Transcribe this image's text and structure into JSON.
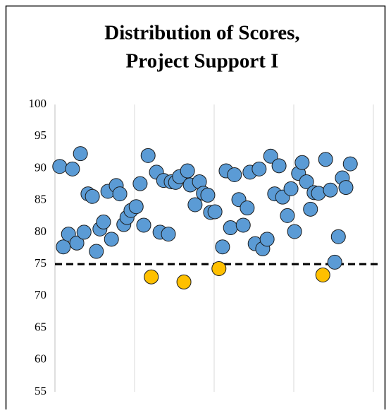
{
  "chart_data": {
    "type": "scatter",
    "title": [
      "Distribution of Scores,",
      "Project Support I"
    ],
    "xlim": [
      0,
      80
    ],
    "xticks": [
      0,
      20,
      40,
      60,
      80
    ],
    "xtick_labels": false,
    "ylim": [
      55,
      100
    ],
    "yticks": [
      55,
      60,
      65,
      70,
      75,
      80,
      85,
      90,
      95,
      100
    ],
    "grid": "x",
    "reference_line": {
      "value": 75,
      "color": "#000000",
      "dashed": true
    },
    "series": [
      {
        "color": "#5b9bd5",
        "x": [
          1.2,
          2.1,
          3.4,
          4.4,
          5.5,
          6.4,
          7.3,
          8.3,
          9.4,
          10.4,
          11.3,
          12.2,
          13.3,
          14.2,
          15.4,
          16.3,
          17.3,
          18.1,
          19.1,
          20.4,
          21.4,
          22.3,
          23.4,
          25.5,
          26.4,
          27.3,
          28.5,
          29.2,
          30.3,
          31.3,
          33.3,
          34,
          35.2,
          36.3,
          37.3,
          38.4,
          39.1,
          40.2,
          42.1,
          43,
          44.1,
          45.1,
          46.2,
          47.3,
          48.3,
          49,
          50.3,
          51.3,
          52.2,
          53.3,
          54.2,
          55.2,
          56.3,
          57.2,
          58.4,
          59.3,
          60.2,
          61.2,
          62.1,
          63.2,
          64.2,
          65.1,
          66.2,
          68,
          69.2,
          70.3,
          71.2,
          72.2,
          73.1,
          74.2
        ],
        "values": [
          90.3,
          77.7,
          79.7,
          89.9,
          78.3,
          92.3,
          80,
          86,
          85.6,
          77,
          80.5,
          81.6,
          86.4,
          78.9,
          87.3,
          86,
          81.2,
          82.3,
          83.4,
          84,
          87.6,
          81.1,
          92,
          89.4,
          80,
          88.1,
          79.7,
          87.9,
          87.8,
          88.7,
          89.6,
          87.4,
          84.3,
          87.9,
          86.1,
          85.8,
          83.1,
          83.2,
          77.7,
          89.6,
          80.7,
          89,
          85.1,
          81.1,
          83.8,
          89.4,
          78.2,
          89.9,
          77.4,
          78.9,
          91.9,
          86,
          90.4,
          85.5,
          82.6,
          86.8,
          80.1,
          89.2,
          90.9,
          87.9,
          83.6,
          86.2,
          86.1,
          91.4,
          86.6,
          75.3,
          79.3,
          88.5,
          87,
          90.7
        ]
      },
      {
        "color": "#ffc000",
        "x": [
          24.2,
          32.4,
          41.2,
          67.3
        ],
        "values": [
          73,
          72.2,
          74.3,
          73.3
        ]
      }
    ]
  }
}
